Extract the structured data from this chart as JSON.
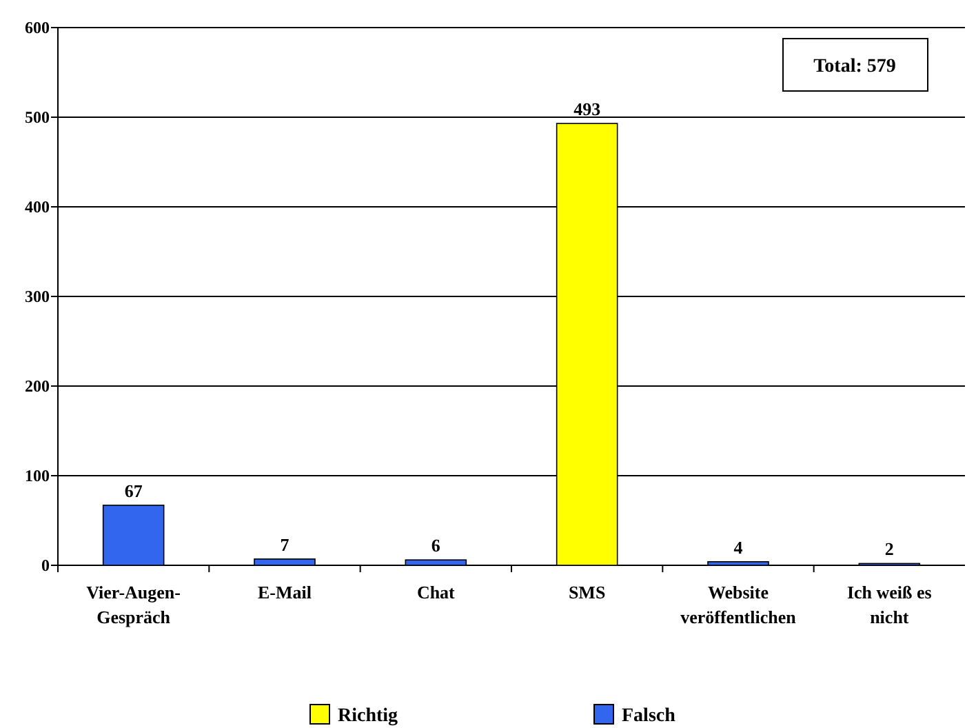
{
  "chart_data": {
    "type": "bar",
    "categories": [
      "Vier-Augen-Gespräch",
      "E-Mail",
      "Chat",
      "SMS",
      "Website veröffentlichen",
      "Ich weiß es nicht"
    ],
    "series": [
      {
        "name": "Richtig",
        "color": "#ffff00",
        "values": [
          null,
          null,
          null,
          493,
          null,
          null
        ]
      },
      {
        "name": "Falsch",
        "color": "#3366ee",
        "values": [
          67,
          7,
          6,
          null,
          4,
          2
        ]
      }
    ],
    "ylim": [
      0,
      600
    ],
    "yticks": [
      0,
      100,
      200,
      300,
      400,
      500,
      600
    ],
    "grid": "y",
    "data_labels": true,
    "legend": "bottom",
    "annotations": [
      "Total: 579"
    ]
  }
}
